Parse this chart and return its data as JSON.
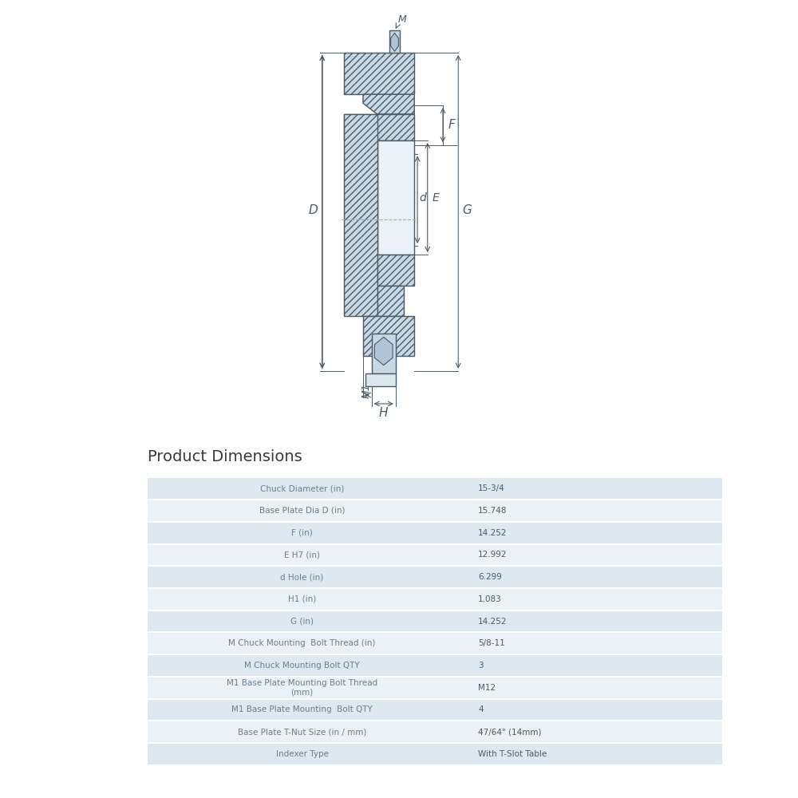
{
  "bg_color": "#ffffff",
  "title": "Product Dimensions",
  "title_fontsize": 14,
  "table_rows": [
    [
      "Chuck Diameter (in)",
      "15-3/4"
    ],
    [
      "Base Plate Dia D (in)",
      "15.748"
    ],
    [
      "F (in)",
      "14.252"
    ],
    [
      "E H7 (in)",
      "12.992"
    ],
    [
      "d Hole (in)",
      "6.299"
    ],
    [
      "H1 (in)",
      "1.083"
    ],
    [
      "G (in)",
      "14.252"
    ],
    [
      "M Chuck Mounting  Bolt Thread (in)",
      "5/8-11"
    ],
    [
      "M Chuck Mounting Bolt QTY",
      "3"
    ],
    [
      "M1 Base Plate Mounting Bolt Thread\n(mm)",
      "M12"
    ],
    [
      "M1 Base Plate Mounting  Bolt QTY",
      "4"
    ],
    [
      "Base Plate T-Nut Size (in / mm)",
      "47/64\" (14mm)"
    ],
    [
      "Indexer Type",
      "With T-Slot Table"
    ]
  ],
  "row_colors": [
    "#dde8f0",
    "#eaf1f7"
  ],
  "label_color": "#6b7c8a",
  "value_color": "#4a5a65",
  "line_color": "#b0bec5",
  "drawing_line_color": "#4a5a65",
  "hatch_color": "#8fa8b8",
  "hatch_bg": "#c8d8e4"
}
